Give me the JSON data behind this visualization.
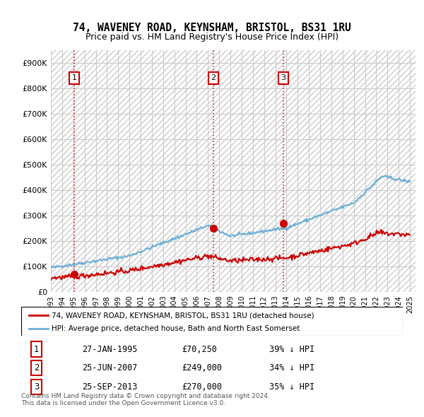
{
  "title": "74, WAVENEY ROAD, KEYNSHAM, BRISTOL, BS31 1RU",
  "subtitle": "Price paid vs. HM Land Registry's House Price Index (HPI)",
  "legend_line1": "74, WAVENEY ROAD, KEYNSHAM, BRISTOL, BS31 1RU (detached house)",
  "legend_line2": "HPI: Average price, detached house, Bath and North East Somerset",
  "footnote": "Contains HM Land Registry data © Crown copyright and database right 2024.\nThis data is licensed under the Open Government Licence v3.0.",
  "transactions": [
    {
      "num": 1,
      "date": "27-JAN-1995",
      "price": 70250,
      "pct": "39% ↓ HPI",
      "x_year": 1995.07
    },
    {
      "num": 2,
      "date": "25-JUN-2007",
      "price": 249000,
      "pct": "34% ↓ HPI",
      "x_year": 2007.48
    },
    {
      "num": 3,
      "date": "25-SEP-2013",
      "price": 270000,
      "pct": "35% ↓ HPI",
      "x_year": 2013.73
    }
  ],
  "hpi_color": "#6baed6",
  "price_color": "#cc0000",
  "vline_color": "#cc0000",
  "background_color": "#ffffff",
  "grid_color": "#cccccc",
  "ylim": [
    0,
    950000
  ],
  "yticks": [
    0,
    100000,
    200000,
    300000,
    400000,
    500000,
    600000,
    700000,
    800000,
    900000
  ],
  "xlim_start": 1993,
  "xlim_end": 2025.5,
  "xticks": [
    1993,
    1994,
    1995,
    1996,
    1997,
    1998,
    1999,
    2000,
    2001,
    2002,
    2003,
    2004,
    2005,
    2006,
    2007,
    2008,
    2009,
    2010,
    2011,
    2012,
    2013,
    2014,
    2015,
    2016,
    2017,
    2018,
    2019,
    2020,
    2021,
    2022,
    2023,
    2024,
    2025
  ]
}
